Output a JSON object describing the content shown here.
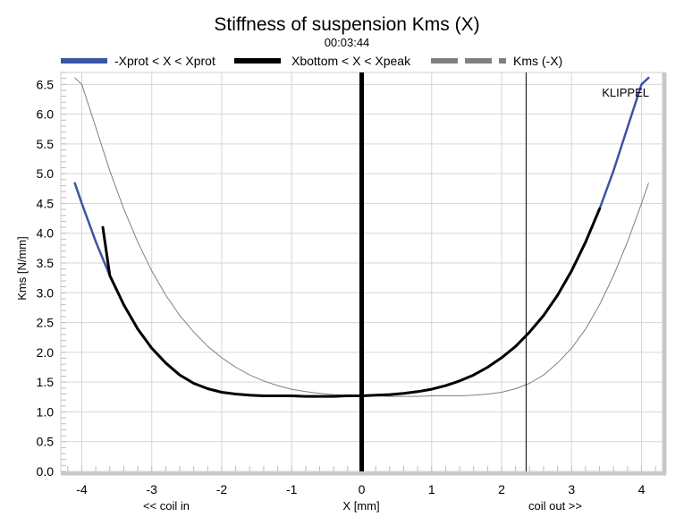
{
  "chart_data": {
    "type": "line",
    "title": "Stiffness of suspension Kms (X)",
    "subtitle": "00:03:44",
    "xlabel": "X [mm]",
    "ylabel": "Kms [N/mm]",
    "xlim": [
      -4.3,
      4.3
    ],
    "ylim": [
      0.0,
      6.7
    ],
    "x_ticks": [
      -4,
      -3,
      -2,
      -1,
      0,
      1,
      2,
      3,
      4
    ],
    "y_ticks": [
      0.0,
      0.5,
      1.0,
      1.5,
      2.0,
      2.5,
      3.0,
      3.5,
      4.0,
      4.5,
      5.0,
      5.5,
      6.0,
      6.5
    ],
    "x_tick_labels": [
      "-4",
      "-3",
      "-2",
      "-1",
      "0",
      "1",
      "2",
      "3",
      "4"
    ],
    "y_tick_labels": [
      "0.0",
      "0.5",
      "1.0",
      "1.5",
      "2.0",
      "2.5",
      "3.0",
      "3.5",
      "4.0",
      "4.5",
      "5.0",
      "5.5",
      "6.0",
      "6.5"
    ],
    "annotations": {
      "left": "<< coil in",
      "right": "coil out >>",
      "brand": "KLIPPEL"
    },
    "grid": true,
    "legend_position": "top",
    "legend": [
      {
        "name": "-Xprot < X < Xprot",
        "color": "#3a55a4"
      },
      {
        "name": "Xbottom < X < Xpeak",
        "color": "#000000"
      },
      {
        "name": "Kms (-X)",
        "color": "#808080"
      }
    ],
    "vertical_lines": [
      {
        "x": 0.0,
        "color": "#000000",
        "style": "thick"
      },
      {
        "x": 2.35,
        "color": "#000000",
        "style": "thin"
      }
    ],
    "series": [
      {
        "name": "-Xprot < X < Xprot",
        "color": "#3a55a4",
        "x": [
          -4.1,
          -4.0,
          -3.8,
          -3.6,
          -3.4,
          -3.2,
          -3.0,
          -2.8,
          -2.6,
          -2.4,
          -2.2,
          -2.0,
          -1.8,
          -1.6,
          -1.4,
          -1.2,
          -1.0,
          -0.8,
          -0.6,
          -0.4,
          -0.2,
          0.0,
          0.2,
          0.4,
          0.6,
          0.8,
          1.0,
          1.2,
          1.4,
          1.6,
          1.8,
          2.0,
          2.2,
          2.4,
          2.6,
          2.8,
          3.0,
          3.2,
          3.4,
          3.6,
          3.8,
          4.0,
          4.1
        ],
        "y": [
          4.84,
          4.5,
          3.86,
          3.29,
          2.8,
          2.39,
          2.07,
          1.82,
          1.62,
          1.48,
          1.39,
          1.33,
          1.3,
          1.28,
          1.27,
          1.27,
          1.27,
          1.26,
          1.26,
          1.26,
          1.27,
          1.27,
          1.28,
          1.29,
          1.31,
          1.34,
          1.38,
          1.44,
          1.52,
          1.62,
          1.75,
          1.91,
          2.1,
          2.34,
          2.62,
          2.96,
          3.37,
          3.85,
          4.41,
          5.05,
          5.78,
          6.5,
          6.61
        ]
      },
      {
        "name": "Xbottom < X < Xpeak",
        "color": "#000000",
        "x": [
          -3.7,
          -3.6,
          -3.4,
          -3.2,
          -3.0,
          -2.8,
          -2.6,
          -2.4,
          -2.2,
          -2.0,
          -1.8,
          -1.6,
          -1.4,
          -1.2,
          -1.0,
          -0.8,
          -0.6,
          -0.4,
          -0.2,
          0.0,
          0.2,
          0.4,
          0.6,
          0.8,
          1.0,
          1.2,
          1.4,
          1.6,
          1.8,
          2.0,
          2.2,
          2.4,
          2.6,
          2.8,
          3.0,
          3.2,
          3.4
        ],
        "y": [
          4.1,
          3.29,
          2.8,
          2.39,
          2.07,
          1.82,
          1.62,
          1.48,
          1.39,
          1.33,
          1.3,
          1.28,
          1.27,
          1.27,
          1.27,
          1.26,
          1.26,
          1.26,
          1.27,
          1.27,
          1.28,
          1.29,
          1.31,
          1.34,
          1.38,
          1.44,
          1.52,
          1.62,
          1.75,
          1.91,
          2.1,
          2.34,
          2.62,
          2.96,
          3.37,
          3.85,
          4.41
        ]
      },
      {
        "name": "Kms (-X)",
        "color": "#808080",
        "x": [
          -4.1,
          -4.0,
          -3.8,
          -3.6,
          -3.4,
          -3.2,
          -3.0,
          -2.8,
          -2.6,
          -2.4,
          -2.2,
          -2.0,
          -1.8,
          -1.6,
          -1.4,
          -1.2,
          -1.0,
          -0.8,
          -0.6,
          -0.4,
          -0.2,
          0.0,
          0.2,
          0.4,
          0.6,
          0.8,
          1.0,
          1.2,
          1.4,
          1.6,
          1.8,
          2.0,
          2.2,
          2.4,
          2.6,
          2.8,
          3.0,
          3.2,
          3.4,
          3.6,
          3.8,
          4.0,
          4.1
        ],
        "y": [
          6.61,
          6.5,
          5.78,
          5.05,
          4.41,
          3.85,
          3.37,
          2.96,
          2.62,
          2.34,
          2.1,
          1.91,
          1.75,
          1.62,
          1.52,
          1.44,
          1.38,
          1.34,
          1.31,
          1.29,
          1.28,
          1.27,
          1.27,
          1.26,
          1.26,
          1.26,
          1.27,
          1.27,
          1.27,
          1.28,
          1.3,
          1.33,
          1.39,
          1.48,
          1.62,
          1.82,
          2.07,
          2.39,
          2.8,
          3.29,
          3.86,
          4.5,
          4.84
        ]
      }
    ]
  }
}
